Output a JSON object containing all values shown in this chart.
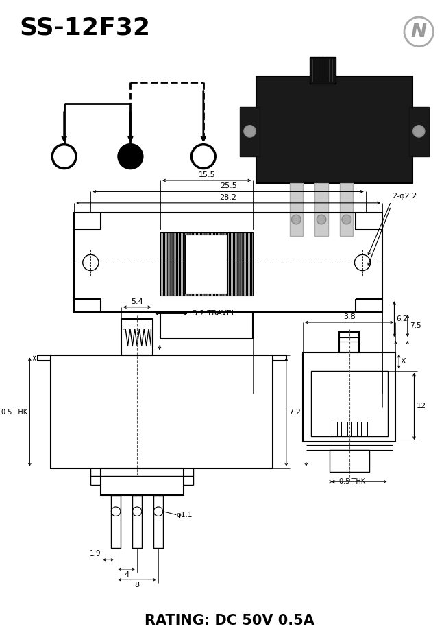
{
  "title": "SS-12F32",
  "rating": "RATING: DC 50V 0.5A",
  "bg_color": "#ffffff",
  "lc": "#000000",
  "dim_28_2": "28.2",
  "dim_25_5": "25.5",
  "dim_15_5": "15.5",
  "dim_2_phi2_2": "2-φ2.2",
  "dim_6_2": "6.2",
  "dim_7_5": "7.5",
  "dim_5_4": "5.4",
  "dim_3_2_travel": "3.2 TRAVEL",
  "dim_7_2": "7.2",
  "dim_3_8": "3.8",
  "dim_12": "12",
  "dim_0_5_thk": "0.5 THK",
  "dim_1_9": "1.9",
  "dim_phi1_1": "φ1.1",
  "dim_4": "4",
  "dim_8": "8",
  "dim_X": "X"
}
